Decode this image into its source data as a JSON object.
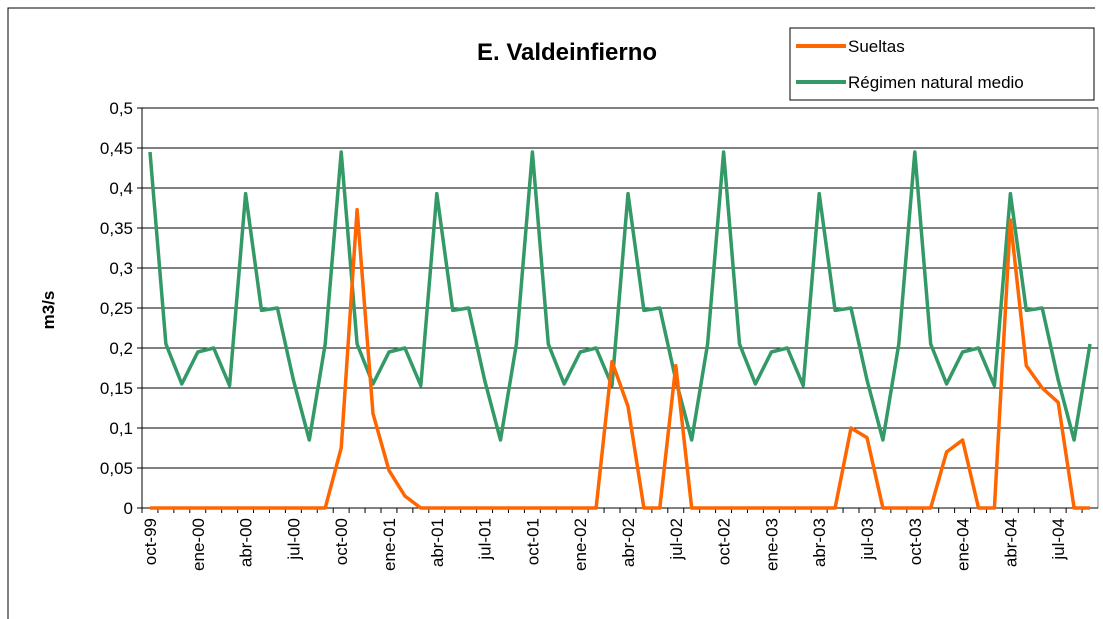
{
  "chart_data": {
    "type": "line",
    "title": "E. Valdeinfierno",
    "y_label": "m3/s",
    "categories": [
      "oct-99",
      null,
      null,
      "ene-00",
      null,
      null,
      "abr-00",
      null,
      null,
      "jul-00",
      null,
      null,
      "oct-00",
      null,
      null,
      "ene-01",
      null,
      null,
      "abr-01",
      null,
      null,
      "jul-01",
      null,
      null,
      "oct-01",
      null,
      null,
      "ene-02",
      null,
      null,
      "abr-02",
      null,
      null,
      "jul-02",
      null,
      null,
      "oct-02",
      null,
      null,
      "ene-03",
      null,
      null,
      "abr-03",
      null,
      null,
      "jul-03",
      null,
      null,
      "oct-03",
      null,
      null,
      "ene-04",
      null,
      null,
      "abr-04",
      null,
      null,
      "jul-04",
      null,
      null
    ],
    "series": [
      {
        "name": "Sueltas",
        "color": "#ff6600",
        "values": [
          0,
          0,
          0,
          0,
          0,
          0,
          0,
          0,
          0,
          0,
          0,
          0,
          0.075,
          0.373,
          0.118,
          0.047,
          0.015,
          0,
          0,
          0,
          0,
          0,
          0,
          0,
          0,
          0,
          0,
          0,
          0,
          0.183,
          0.127,
          0,
          0,
          0.178,
          0,
          0,
          0,
          0,
          0,
          0,
          0,
          0,
          0,
          0,
          0.1,
          0.088,
          0,
          0,
          0,
          0,
          0.07,
          0.085,
          0,
          0,
          0.36,
          0.178,
          0.15,
          0.132,
          0,
          0
        ]
      },
      {
        "name": "Régimen natural medio",
        "color": "#339966",
        "values": [
          0.445,
          0.205,
          0.155,
          0.195,
          0.2,
          0.153,
          0.393,
          0.247,
          0.25,
          0.16,
          0.085,
          0.205,
          0.445,
          0.205,
          0.155,
          0.195,
          0.2,
          0.153,
          0.393,
          0.247,
          0.25,
          0.16,
          0.085,
          0.205,
          0.445,
          0.205,
          0.155,
          0.195,
          0.2,
          0.153,
          0.393,
          0.247,
          0.25,
          0.16,
          0.085,
          0.205,
          0.445,
          0.205,
          0.155,
          0.195,
          0.2,
          0.153,
          0.393,
          0.247,
          0.25,
          0.16,
          0.085,
          0.205,
          0.445,
          0.205,
          0.155,
          0.195,
          0.2,
          0.153,
          0.393,
          0.247,
          0.25,
          0.16,
          0.085,
          0.205
        ]
      }
    ],
    "ylim": [
      0,
      0.5
    ],
    "yticks": [
      0,
      {
        "value": 0.05,
        "label": "0,05"
      },
      {
        "value": 0.1,
        "label": "0,1"
      },
      {
        "value": 0.15,
        "label": "0,15"
      },
      {
        "value": 0.2,
        "label": "0,2"
      },
      {
        "value": 0.25,
        "label": "0,25"
      },
      {
        "value": 0.3,
        "label": "0,3"
      },
      {
        "value": 0.35,
        "label": "0,35"
      },
      {
        "value": 0.4,
        "label": "0,4"
      },
      {
        "value": 0.45,
        "label": "0,45"
      },
      {
        "value": 0.5,
        "label": "0,5"
      }
    ],
    "grid": true,
    "legend": "top-right"
  }
}
